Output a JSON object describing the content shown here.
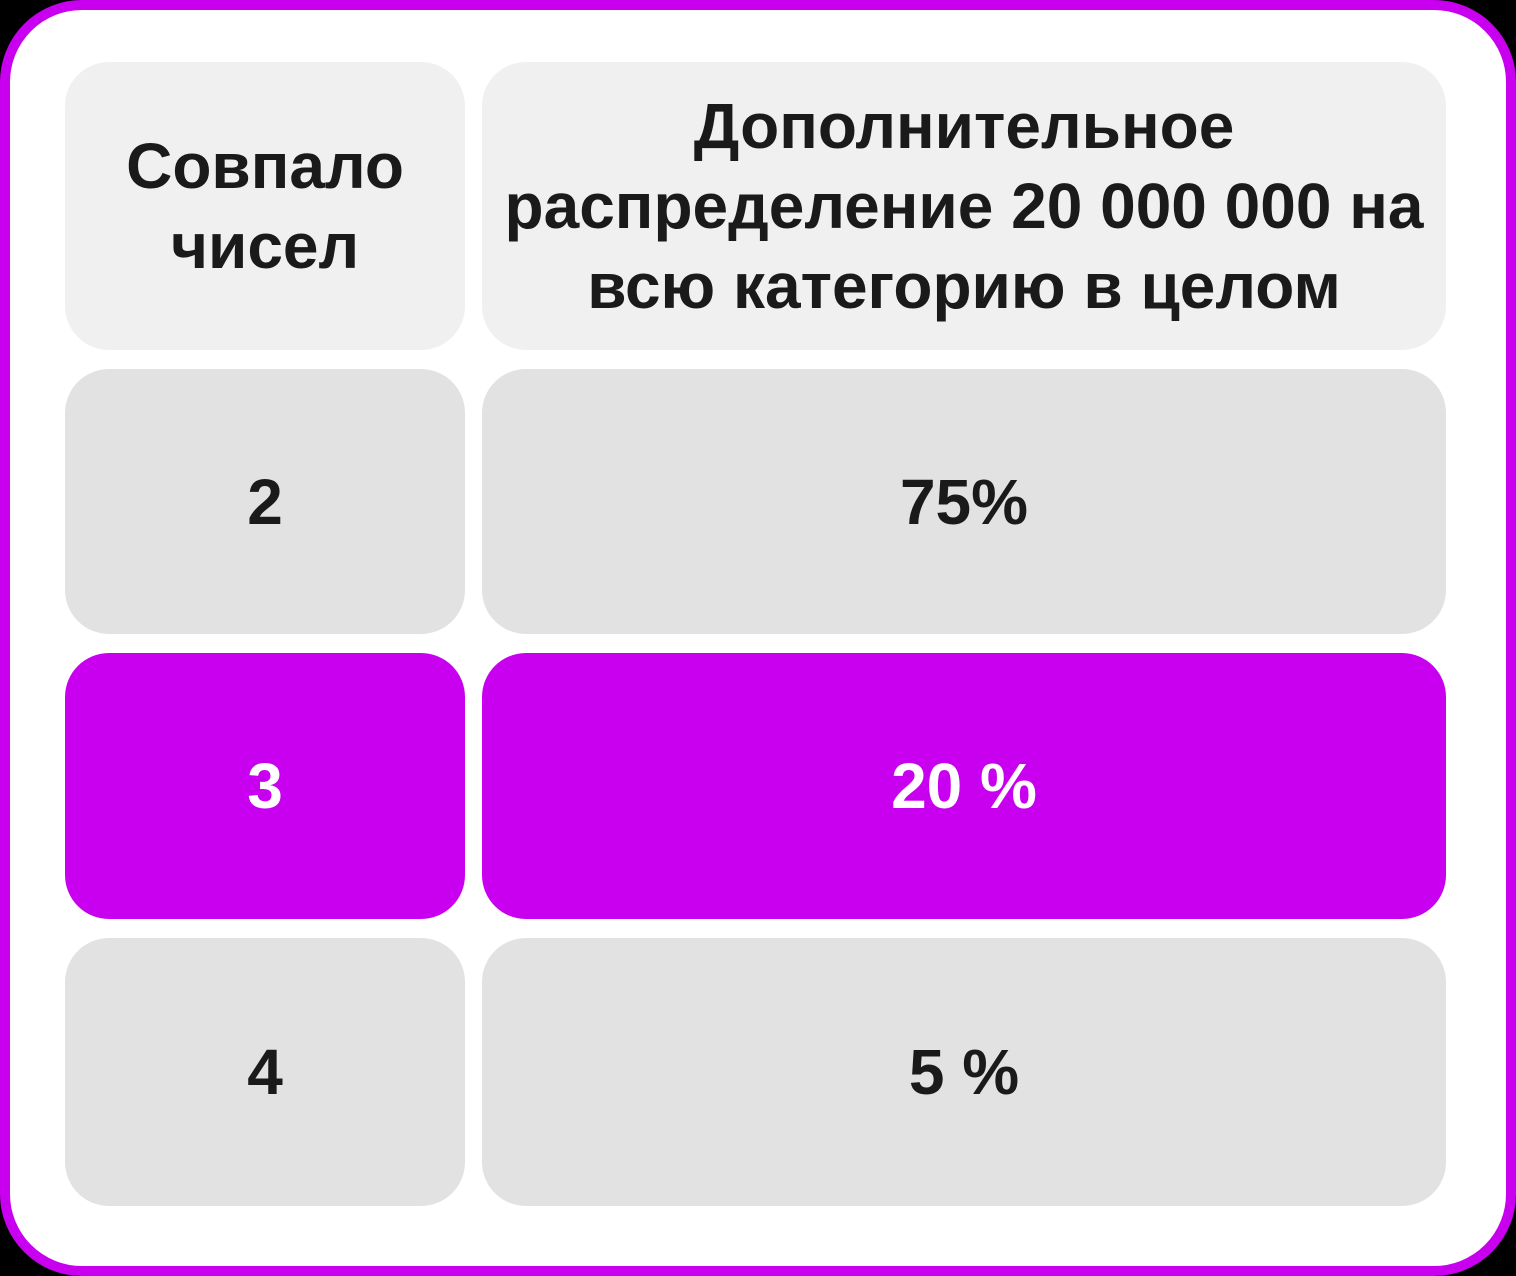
{
  "colors": {
    "background": "#000000",
    "card_bg": "#ffffff",
    "card_border": "#c900f0",
    "header_cell_bg": "#f0f0f0",
    "cell_bg": "#e2e2e2",
    "highlight_bg": "#c900f0",
    "text_dark": "#1a1a1a",
    "text_light": "#ffffff"
  },
  "table": {
    "headers": [
      {
        "lines": [
          "Совпало",
          "чисел"
        ]
      },
      {
        "lines": [
          "Дополнительное",
          "распределение 20 000 000 на",
          "всю категорию в целом"
        ]
      }
    ],
    "rows": [
      {
        "matched": "2",
        "share": "75%",
        "highlighted": false
      },
      {
        "matched": "3",
        "share": "20 %",
        "highlighted": true
      },
      {
        "matched": "4",
        "share": "5 %",
        "highlighted": false
      }
    ]
  }
}
